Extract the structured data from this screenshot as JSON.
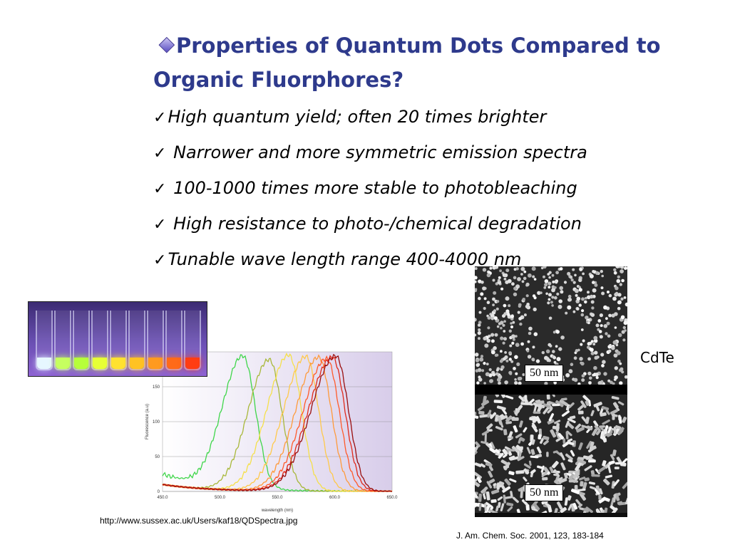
{
  "heading": {
    "line1": "Properties of Quantum Dots Compared to",
    "line2": "Organic Fluorphores?"
  },
  "bullets": [
    "High quantum yield; often 20 times brighter",
    " Narrower and more symmetric emission spectra",
    " 100-1000 times more stable to photobleaching",
    " High resistance to photo-/chemical degradation",
    "Tunable wave length range 400-4000 nm"
  ],
  "check_glyph": "✓",
  "micrograph": {
    "scale_top": "50 nm",
    "scale_bottom": "50 nm",
    "label": "CdTe"
  },
  "source_url": "http://www.sussex.ac.uk/Users/kaf18/QDSpectra.jpg",
  "citation": "J. Am. Chem. Soc. 2001, 123, 183-184",
  "vial_colors": [
    "#e6f7ff",
    "#c6ff60",
    "#b6ff3a",
    "#e7ff35",
    "#ffe230",
    "#ffc223",
    "#ff9a1f",
    "#ff6a18",
    "#ff3d12"
  ],
  "chart_data": {
    "type": "line",
    "xlabel": "wavelength (nm)",
    "ylabel": "Fluorescence (a.u)",
    "xlim": [
      450,
      650
    ],
    "ylim": [
      0,
      200
    ],
    "x_ticks": [
      "450.0",
      "500.0",
      "550.0",
      "600.0",
      "650.0"
    ],
    "y_ticks": [
      "0",
      "50",
      "100",
      "150"
    ],
    "series": [
      {
        "color": "#3fd64a",
        "peak_x": 520,
        "peak_y": 190
      },
      {
        "color": "#a8b83a",
        "peak_x": 543,
        "peak_y": 188
      },
      {
        "color": "#f5e04a",
        "peak_x": 560,
        "peak_y": 195
      },
      {
        "color": "#ffc94a",
        "peak_x": 575,
        "peak_y": 193
      },
      {
        "color": "#ff9a3a",
        "peak_x": 586,
        "peak_y": 192
      },
      {
        "color": "#ff5a2a",
        "peak_x": 593,
        "peak_y": 190
      },
      {
        "color": "#e02a1a",
        "peak_x": 598,
        "peak_y": 192
      },
      {
        "color": "#9a0f0f",
        "peak_x": 601,
        "peak_y": 194
      }
    ]
  }
}
